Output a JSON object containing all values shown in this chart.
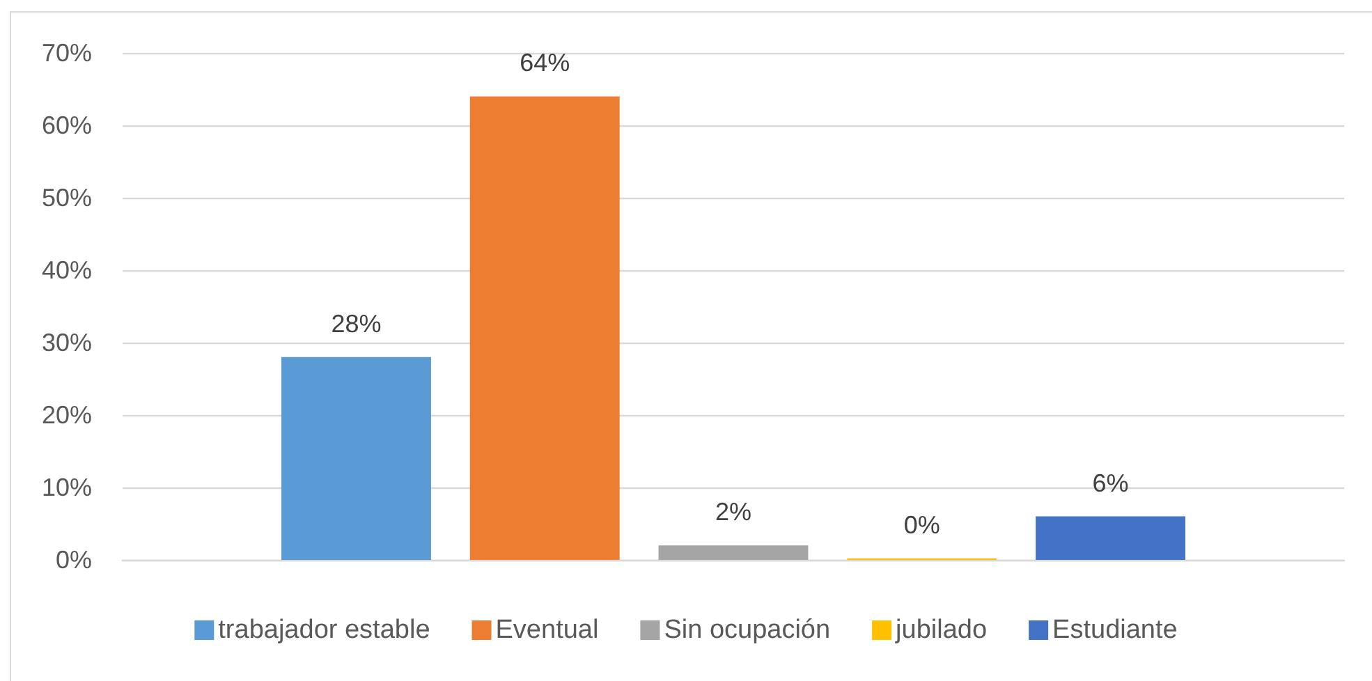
{
  "chart_data": {
    "type": "bar",
    "categories": [
      null
    ],
    "series": [
      {
        "name": "trabajador estable",
        "color": "#5b9bd5",
        "values": [
          28
        ],
        "value_labels": [
          "28%"
        ]
      },
      {
        "name": "Eventual",
        "color": "#ed7d31",
        "values": [
          64
        ],
        "value_labels": [
          "64%"
        ]
      },
      {
        "name": "Sin ocupación",
        "color": "#a5a5a5",
        "values": [
          2
        ],
        "value_labels": [
          "2%"
        ]
      },
      {
        "name": "jubilado",
        "color": "#ffc000",
        "values": [
          0
        ],
        "value_labels": [
          "0%"
        ]
      },
      {
        "name": "Estudiante",
        "color": "#4472c4",
        "values": [
          6
        ],
        "value_labels": [
          "6%"
        ]
      }
    ],
    "ylim": [
      0,
      70
    ],
    "yticks": [
      {
        "value": 0,
        "label": "0%"
      },
      {
        "value": 10,
        "label": "10%"
      },
      {
        "value": 20,
        "label": "20%"
      },
      {
        "value": 30,
        "label": "30%"
      },
      {
        "value": 40,
        "label": "40%"
      },
      {
        "value": 50,
        "label": "50%"
      },
      {
        "value": 60,
        "label": "60%"
      },
      {
        "value": 70,
        "label": "70%"
      }
    ],
    "grid": "y",
    "legend": "bottom",
    "tick_labels": "y"
  }
}
